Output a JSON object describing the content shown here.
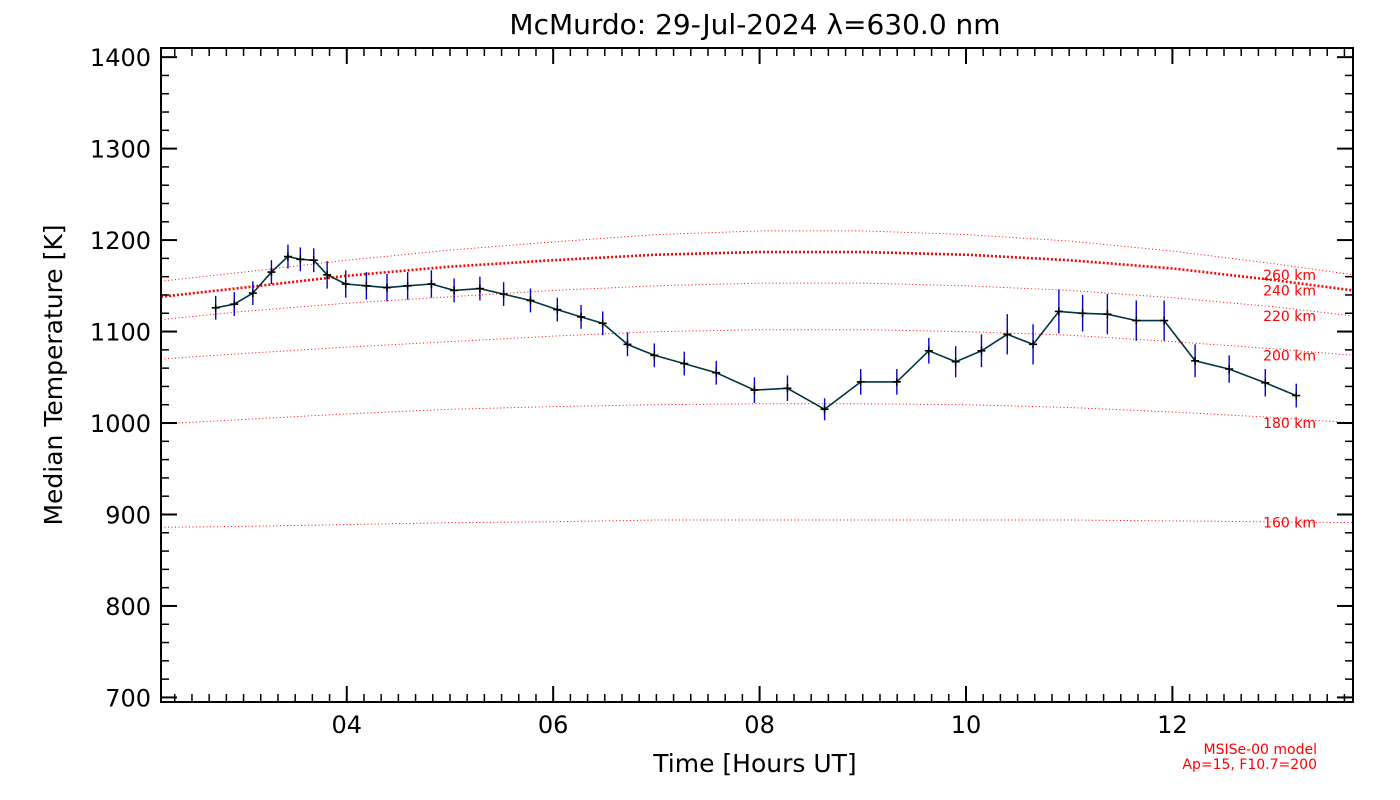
{
  "chart_data": {
    "type": "line",
    "title": "McMurdo: 29-Jul-2024 λ=630.0 nm",
    "xlabel": "Time [Hours UT]",
    "ylabel": "Median Temperature [K]",
    "xlim": [
      2.2,
      13.75
    ],
    "ylim": [
      695,
      1410
    ],
    "x_ticks": [
      4,
      6,
      8,
      10,
      12
    ],
    "x_tick_labels": [
      "04",
      "06",
      "08",
      "10",
      "12"
    ],
    "y_ticks": [
      700,
      800,
      900,
      1000,
      1100,
      1200,
      1300,
      1400
    ],
    "y_tick_labels": [
      "700",
      "800",
      "900",
      "1000",
      "1100",
      "1200",
      "1300",
      "1400"
    ],
    "grid": false,
    "series": [
      {
        "x": [
          2.73,
          2.91,
          3.09,
          3.27,
          3.43,
          3.55,
          3.68,
          3.81,
          3.99,
          4.19,
          4.39,
          4.59,
          4.82,
          5.04,
          5.29,
          5.52,
          5.78,
          6.04,
          6.27,
          6.48,
          6.72,
          6.98,
          7.27,
          7.58,
          7.95,
          8.27,
          8.63,
          8.98,
          9.33,
          9.64,
          9.9,
          10.15,
          10.4,
          10.65,
          10.9,
          11.13,
          11.37,
          11.65,
          11.92,
          12.22,
          12.55,
          12.9,
          13.2
        ],
        "y": [
          1126,
          1130,
          1142,
          1165,
          1182,
          1179,
          1178,
          1162,
          1152,
          1150,
          1148,
          1150,
          1152,
          1145,
          1147,
          1141,
          1134,
          1124,
          1116,
          1109,
          1086,
          1074,
          1065,
          1055,
          1036,
          1038,
          1015,
          1045,
          1045,
          1079,
          1067,
          1079,
          1097,
          1086,
          1122,
          1120,
          1119,
          1112,
          1112,
          1068,
          1059,
          1044,
          1030
        ],
        "err": [
          13,
          13,
          13,
          13,
          13,
          13,
          13,
          15,
          15,
          15,
          15,
          15,
          15,
          13,
          13,
          13,
          13,
          13,
          13,
          13,
          13,
          13,
          13,
          13,
          14,
          14,
          12,
          14,
          14,
          14,
          17,
          18,
          22,
          22,
          24,
          20,
          22,
          22,
          22,
          18,
          15,
          15,
          13
        ],
        "line_color": "#003344",
        "errorbar_color": "#0000cc"
      }
    ],
    "model_curves": {
      "color": "#ff0000",
      "x": [
        2.2,
        3,
        4,
        5,
        6,
        7,
        8,
        9,
        10,
        11,
        12,
        13,
        13.75
      ],
      "curves": [
        {
          "label": "160 km",
          "y": [
            886,
            887,
            889,
            891,
            892,
            894,
            894,
            894,
            894,
            894,
            893,
            892,
            891
          ]
        },
        {
          "label": "180 km",
          "y": [
            999,
            1004,
            1010,
            1015,
            1018,
            1020,
            1021,
            1021,
            1020,
            1017,
            1012,
            1006,
            1000
          ]
        },
        {
          "label": "200 km",
          "y": [
            1070,
            1076,
            1083,
            1089,
            1095,
            1100,
            1102,
            1102,
            1100,
            1096,
            1089,
            1081,
            1074
          ]
        },
        {
          "label": "220 km",
          "y": [
            1113,
            1122,
            1131,
            1138,
            1145,
            1150,
            1153,
            1153,
            1150,
            1145,
            1137,
            1127,
            1117
          ]
        },
        {
          "label": "240 km",
          "y": [
            1138,
            1148,
            1161,
            1171,
            1178,
            1184,
            1187,
            1187,
            1184,
            1178,
            1169,
            1156,
            1145
          ]
        },
        {
          "label": "260 km",
          "y": [
            1155,
            1165,
            1178,
            1189,
            1198,
            1206,
            1210,
            1210,
            1206,
            1199,
            1188,
            1174,
            1162
          ]
        }
      ]
    }
  },
  "model_note": {
    "line1": "MSISe-00 model",
    "line2": "Ap=15, F10.7=200"
  }
}
